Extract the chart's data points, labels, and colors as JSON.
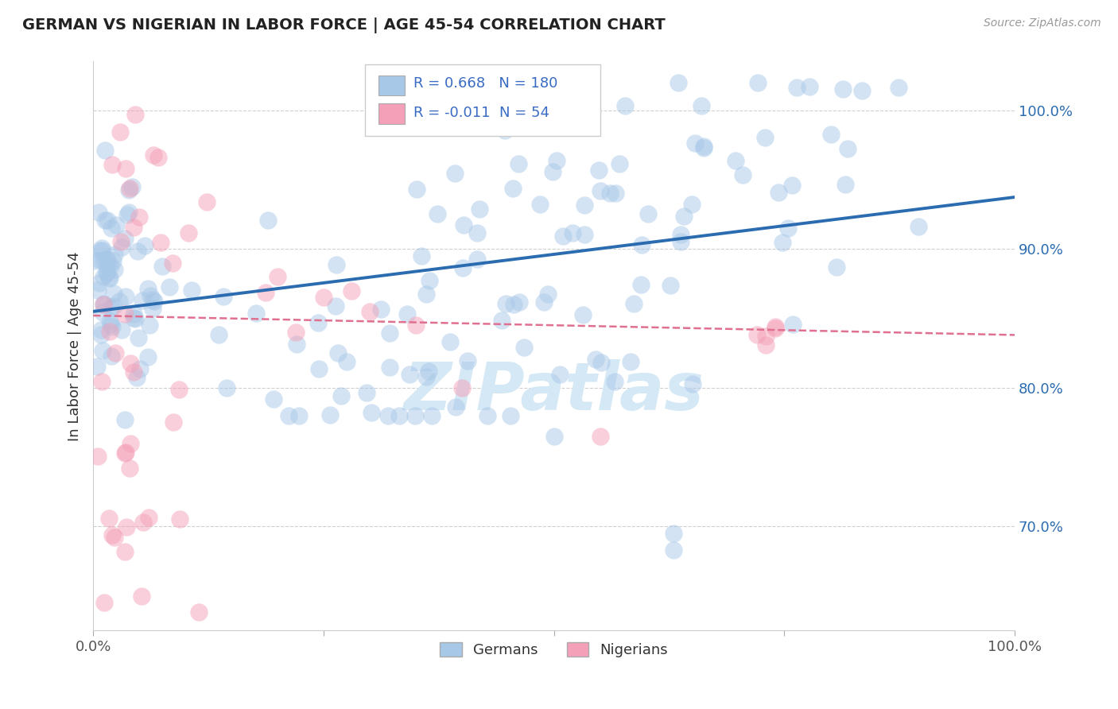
{
  "title": "GERMAN VS NIGERIAN IN LABOR FORCE | AGE 45-54 CORRELATION CHART",
  "source": "Source: ZipAtlas.com",
  "ylabel": "In Labor Force | Age 45-54",
  "xlim": [
    0.0,
    1.0
  ],
  "ylim": [
    0.625,
    1.035
  ],
  "x_ticks": [
    0.0,
    0.25,
    0.5,
    0.75,
    1.0
  ],
  "x_ticklabels": [
    "0.0%",
    "",
    "",
    "",
    "100.0%"
  ],
  "y_ticks": [
    0.7,
    0.8,
    0.9,
    1.0
  ],
  "y_ticklabels": [
    "70.0%",
    "80.0%",
    "90.0%",
    "100.0%"
  ],
  "blue_R": 0.668,
  "blue_N": 180,
  "pink_R": -0.011,
  "pink_N": 54,
  "blue_color": "#a8c8e8",
  "pink_color": "#f4a0b8",
  "blue_line_color": "#2b6cb0",
  "pink_line_color": "#e07090",
  "grid_color": "#d0d0d0",
  "bg_color": "#ffffff",
  "title_color": "#222222",
  "stat_color": "#3a6bc4",
  "watermark_color": "#d5e8f5",
  "seed": 12345
}
